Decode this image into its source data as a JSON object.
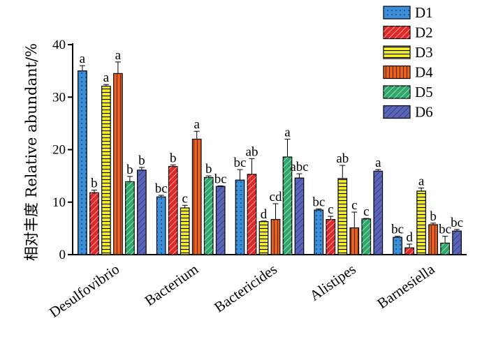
{
  "chart_data": {
    "type": "bar",
    "title": "",
    "xlabel": "",
    "ylabel": "相对丰度 Relative abundant/%",
    "ylim": [
      0,
      40
    ],
    "yticks": [
      "0",
      "10",
      "20",
      "30",
      "40"
    ],
    "grid": false,
    "legend_position": "top-right",
    "categories": [
      "Desulfovibrio",
      "Bacterium",
      "Bactericides",
      "Alistipes",
      "Barnesiella"
    ],
    "series": [
      {
        "name": "D1",
        "color": "#3a8fd6",
        "pattern": "dots",
        "values": [
          35.0,
          11.0,
          14.2,
          8.5,
          3.3
        ],
        "errors": [
          1.0,
          0.3,
          2.0,
          0.2,
          0.2
        ],
        "labels": [
          "a",
          "bc",
          "bc",
          "bc",
          "bc"
        ]
      },
      {
        "name": "D2",
        "color": "#e02828",
        "pattern": "diagonal",
        "values": [
          11.8,
          16.8,
          15.3,
          6.7,
          1.3
        ],
        "errors": [
          0.5,
          0.3,
          3.0,
          0.6,
          0.7
        ],
        "labels": [
          "b",
          "b",
          "ab",
          "c",
          "d"
        ]
      },
      {
        "name": "D3",
        "color": "#f3ec2a",
        "pattern": "horizontal",
        "values": [
          32.1,
          8.9,
          6.3,
          14.5,
          12.1
        ],
        "errors": [
          0.3,
          0.5,
          0.1,
          2.5,
          0.6
        ],
        "labels": [
          "a",
          "c",
          "d",
          "ab",
          "a"
        ]
      },
      {
        "name": "D4",
        "color": "#e8641f",
        "pattern": "vertical",
        "values": [
          34.5,
          22.0,
          6.7,
          5.1,
          5.7
        ],
        "errors": [
          2.2,
          1.5,
          3.0,
          3.0,
          0.3
        ],
        "labels": [
          "a",
          "a",
          "cd",
          "c",
          "b"
        ]
      },
      {
        "name": "D5",
        "color": "#2ea86a",
        "pattern": "diagonal",
        "values": [
          13.9,
          14.7,
          18.6,
          6.8,
          2.2
        ],
        "errors": [
          1.0,
          0.3,
          3.4,
          0.1,
          1.3
        ],
        "labels": [
          "b",
          "b",
          "a",
          "c",
          "bc"
        ]
      },
      {
        "name": "D6",
        "color": "#5a64b8",
        "pattern": "diagonal",
        "values": [
          16.1,
          13.0,
          14.6,
          15.9,
          4.5
        ],
        "errors": [
          0.5,
          0.1,
          0.8,
          0.3,
          0.3
        ],
        "labels": [
          "b",
          "bc",
          "abc",
          "a",
          "bc"
        ]
      }
    ]
  }
}
